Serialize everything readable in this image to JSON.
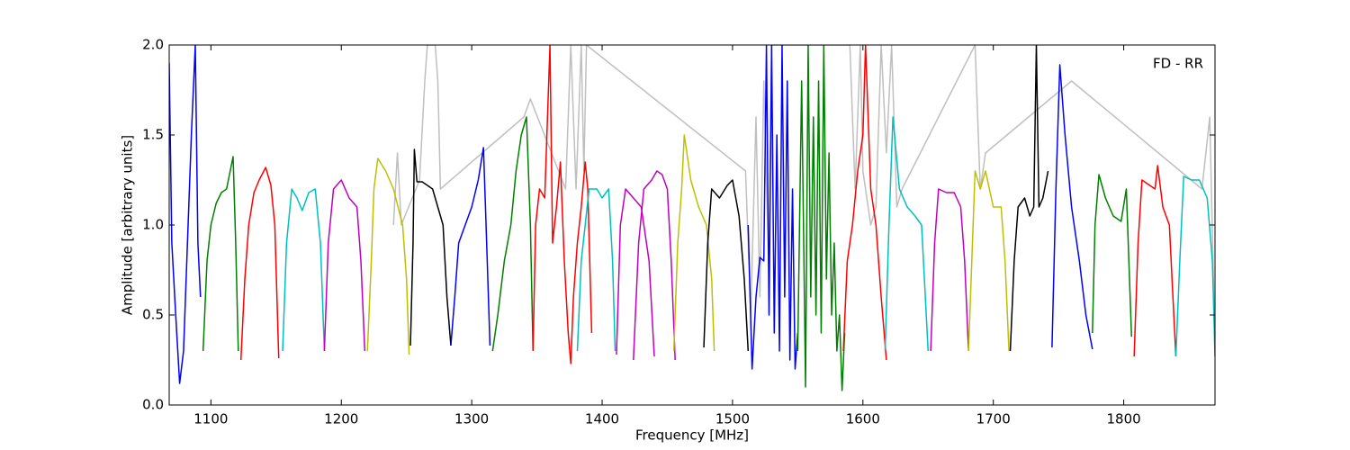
{
  "chart_data": {
    "type": "line",
    "annotation": "FD - RR",
    "x_label": "Frequency [MHz]",
    "y_label": "Amplitude [arbitrary units]",
    "xlim": [
      1068,
      1870
    ],
    "ylim": [
      0,
      2
    ],
    "xticks": [
      1100,
      1200,
      1300,
      1400,
      1500,
      1600,
      1700,
      1800
    ],
    "yticks": [
      {
        "value": 0,
        "label": "0.0"
      },
      0.5,
      {
        "value": 1,
        "label": "1.0"
      },
      1.5,
      {
        "value": 2,
        "label": "2.0"
      }
    ],
    "series": [
      {
        "color": "#bfbfbf",
        "x": [
          1240,
          1243,
          1246,
          1260,
          1264,
          1266,
          1268,
          1270,
          1272,
          1274,
          1276,
          1340,
          1345,
          1372,
          1376,
          1380,
          1384,
          1386,
          1388,
          1510,
          1514,
          1518,
          1521,
          1524,
          1528,
          1530,
          1560,
          1570,
          1580,
          1590,
          1594,
          1598,
          1600,
          1606,
          1610,
          1614,
          1618,
          1622,
          1626,
          1630,
          1686,
          1690,
          1694,
          1760,
          1860,
          1866,
          1870
        ],
        "values": [
          1.0,
          1.4,
          1.0,
          1.25,
          1.8,
          2.0,
          2.0,
          2.0,
          2.0,
          1.8,
          1.2,
          1.6,
          1.7,
          1.2,
          2.0,
          1.2,
          2.0,
          1.3,
          2.0,
          1.3,
          0.5,
          1.6,
          0.6,
          1.8,
          0.7,
          2.0,
          2.0,
          2.0,
          2.0,
          2.0,
          1.2,
          2.0,
          1.3,
          1.0,
          1.1,
          2.0,
          1.4,
          2.0,
          1.1,
          1.2,
          2.0,
          1.2,
          1.4,
          1.8,
          1.2,
          1.6,
          0.3
        ]
      },
      {
        "color": "#0000ff",
        "x": [
          1068,
          1070,
          1073,
          1076,
          1079,
          1082,
          1085,
          1088,
          1090,
          1092
        ],
        "values": [
          1.9,
          0.9,
          0.5,
          0.12,
          0.3,
          0.9,
          1.5,
          2.0,
          0.9,
          0.6
        ]
      },
      {
        "color": "#008000",
        "x": [
          1094,
          1097,
          1100,
          1104,
          1108,
          1112,
          1117,
          1119,
          1121
        ],
        "values": [
          0.3,
          0.8,
          1.0,
          1.12,
          1.18,
          1.2,
          1.38,
          0.9,
          0.3
        ]
      },
      {
        "color": "#ff0000",
        "x": [
          1123,
          1126,
          1129,
          1133,
          1137,
          1142,
          1146,
          1149,
          1152
        ],
        "values": [
          0.25,
          0.7,
          1.0,
          1.18,
          1.25,
          1.32,
          1.22,
          1.0,
          0.26
        ]
      },
      {
        "color": "#00bfbf",
        "x": [
          1155,
          1158,
          1162,
          1166,
          1170,
          1175,
          1180,
          1184,
          1187
        ],
        "values": [
          0.3,
          0.9,
          1.2,
          1.15,
          1.08,
          1.18,
          1.2,
          0.9,
          0.3
        ]
      },
      {
        "color": "#bf00bf",
        "x": [
          1187,
          1190,
          1194,
          1200,
          1206,
          1212,
          1215,
          1218
        ],
        "values": [
          0.3,
          0.9,
          1.2,
          1.25,
          1.15,
          1.1,
          0.8,
          0.3
        ]
      },
      {
        "color": "#bfbf00",
        "x": [
          1220,
          1223,
          1225,
          1228,
          1234,
          1240,
          1247,
          1250,
          1252
        ],
        "values": [
          0.3,
          0.8,
          1.2,
          1.37,
          1.3,
          1.2,
          1.0,
          0.7,
          0.28
        ]
      },
      {
        "color": "#000000",
        "x": [
          1253,
          1255,
          1256,
          1258,
          1262,
          1266,
          1270,
          1274,
          1278,
          1281,
          1284
        ],
        "values": [
          0.33,
          0.9,
          1.42,
          1.24,
          1.24,
          1.22,
          1.2,
          1.1,
          1.0,
          0.6,
          0.33
        ]
      },
      {
        "color": "#0000ff",
        "x": [
          1284,
          1287,
          1290,
          1295,
          1300,
          1305,
          1309,
          1311,
          1314
        ],
        "values": [
          0.33,
          0.6,
          0.9,
          1.0,
          1.1,
          1.25,
          1.43,
          1.0,
          0.33
        ]
      },
      {
        "color": "#008000",
        "x": [
          1316,
          1320,
          1325,
          1330,
          1334,
          1338,
          1342,
          1345,
          1347
        ],
        "values": [
          0.3,
          0.5,
          0.8,
          1.0,
          1.3,
          1.5,
          1.6,
          1.0,
          0.3
        ]
      },
      {
        "color": "#ff0000",
        "x": [
          1347,
          1349,
          1352,
          1356,
          1360,
          1362,
          1365,
          1368,
          1371,
          1374,
          1376,
          1378,
          1381,
          1384,
          1387,
          1389,
          1392
        ],
        "values": [
          0.3,
          1.0,
          1.2,
          1.15,
          2.0,
          0.9,
          1.1,
          1.35,
          0.8,
          0.4,
          0.23,
          0.6,
          0.9,
          1.1,
          1.35,
          1.2,
          0.4
        ]
      },
      {
        "color": "#00bfbf",
        "x": [
          1381,
          1384,
          1390,
          1396,
          1400,
          1405,
          1408,
          1410
        ],
        "values": [
          0.3,
          0.8,
          1.2,
          1.2,
          1.15,
          1.2,
          0.8,
          0.3
        ]
      },
      {
        "color": "#bf00bf",
        "x": [
          1411,
          1414,
          1418,
          1424,
          1430,
          1436,
          1440
        ],
        "values": [
          0.28,
          1.0,
          1.2,
          1.15,
          1.1,
          0.8,
          0.27
        ]
      },
      {
        "color": "#bf00bf",
        "x": [
          1424,
          1428,
          1432,
          1438,
          1442,
          1446,
          1450,
          1453,
          1456
        ],
        "values": [
          0.25,
          0.9,
          1.2,
          1.25,
          1.3,
          1.28,
          1.2,
          0.8,
          0.25
        ]
      },
      {
        "color": "#bfbf00",
        "x": [
          1455,
          1458,
          1461,
          1463,
          1468,
          1474,
          1480,
          1484,
          1486
        ],
        "values": [
          0.3,
          0.9,
          1.2,
          1.5,
          1.25,
          1.1,
          1.0,
          0.7,
          0.3
        ]
      },
      {
        "color": "#000000",
        "x": [
          1478,
          1481,
          1484,
          1490,
          1496,
          1500,
          1505,
          1509,
          1512
        ],
        "values": [
          0.32,
          0.9,
          1.2,
          1.15,
          1.22,
          1.25,
          1.05,
          0.7,
          0.3
        ]
      },
      {
        "color": "#0000ff",
        "x": [
          1512,
          1515,
          1518,
          1521,
          1524,
          1526,
          1528,
          1530,
          1532,
          1534,
          1536,
          1538,
          1540,
          1542,
          1544,
          1546,
          1548,
          1550
        ],
        "values": [
          1.0,
          0.2,
          0.6,
          0.82,
          0.8,
          2.0,
          0.5,
          2.0,
          0.4,
          1.5,
          0.3,
          2.0,
          0.6,
          1.8,
          0.25,
          1.2,
          0.2,
          0.4
        ]
      },
      {
        "color": "#008000",
        "x": [
          1550,
          1553,
          1556,
          1558,
          1560,
          1562,
          1564,
          1566,
          1568,
          1570,
          1572,
          1574,
          1576,
          1578,
          1580,
          1582,
          1584,
          1586
        ],
        "values": [
          0.3,
          1.8,
          0.1,
          2.0,
          0.6,
          1.6,
          0.5,
          1.8,
          0.4,
          2.0,
          0.7,
          1.4,
          0.5,
          0.9,
          0.3,
          0.5,
          0.08,
          0.4
        ]
      },
      {
        "color": "#ff0000",
        "x": [
          1585,
          1588,
          1592,
          1596,
          1600,
          1602,
          1606,
          1610,
          1614,
          1618
        ],
        "values": [
          0.3,
          0.8,
          1.0,
          1.3,
          1.5,
          2.0,
          1.2,
          1.0,
          0.6,
          0.25
        ]
      },
      {
        "color": "#00bfbf",
        "x": [
          1617,
          1620,
          1623,
          1628,
          1634,
          1640,
          1645,
          1650
        ],
        "values": [
          0.3,
          1.0,
          1.6,
          1.2,
          1.1,
          1.05,
          1.0,
          0.3
        ]
      },
      {
        "color": "#bf00bf",
        "x": [
          1652,
          1655,
          1658,
          1664,
          1670,
          1675,
          1678,
          1681
        ],
        "values": [
          0.3,
          0.9,
          1.2,
          1.18,
          1.18,
          1.1,
          0.8,
          0.3
        ]
      },
      {
        "color": "#bfbf00",
        "x": [
          1681,
          1684,
          1686,
          1690,
          1694,
          1700,
          1706,
          1709,
          1712
        ],
        "values": [
          0.3,
          0.9,
          1.3,
          1.2,
          1.3,
          1.1,
          1.1,
          0.8,
          0.3
        ]
      },
      {
        "color": "#000000",
        "x": [
          1713,
          1716,
          1719,
          1724,
          1728,
          1731,
          1733,
          1735,
          1738,
          1742
        ],
        "values": [
          0.3,
          0.8,
          1.1,
          1.15,
          1.05,
          1.1,
          2.0,
          1.1,
          1.15,
          1.3
        ]
      },
      {
        "color": "#0000ff",
        "x": [
          1745,
          1748,
          1751,
          1755,
          1760,
          1766,
          1771,
          1776
        ],
        "values": [
          0.32,
          1.2,
          1.89,
          1.5,
          1.1,
          0.8,
          0.5,
          0.31
        ]
      },
      {
        "color": "#008000",
        "x": [
          1776,
          1778,
          1781,
          1786,
          1792,
          1798,
          1802,
          1806
        ],
        "values": [
          0.4,
          1.0,
          1.28,
          1.15,
          1.05,
          1.02,
          1.2,
          0.38
        ]
      },
      {
        "color": "#ff0000",
        "x": [
          1808,
          1811,
          1814,
          1820,
          1824,
          1826,
          1830,
          1835,
          1840
        ],
        "values": [
          0.27,
          0.9,
          1.25,
          1.22,
          1.2,
          1.33,
          1.1,
          1.0,
          0.27
        ]
      },
      {
        "color": "#00bfbf",
        "x": [
          1840,
          1843,
          1846,
          1852,
          1858,
          1864,
          1868,
          1870
        ],
        "values": [
          0.27,
          0.8,
          1.27,
          1.25,
          1.25,
          1.15,
          0.8,
          0.27
        ]
      }
    ]
  }
}
